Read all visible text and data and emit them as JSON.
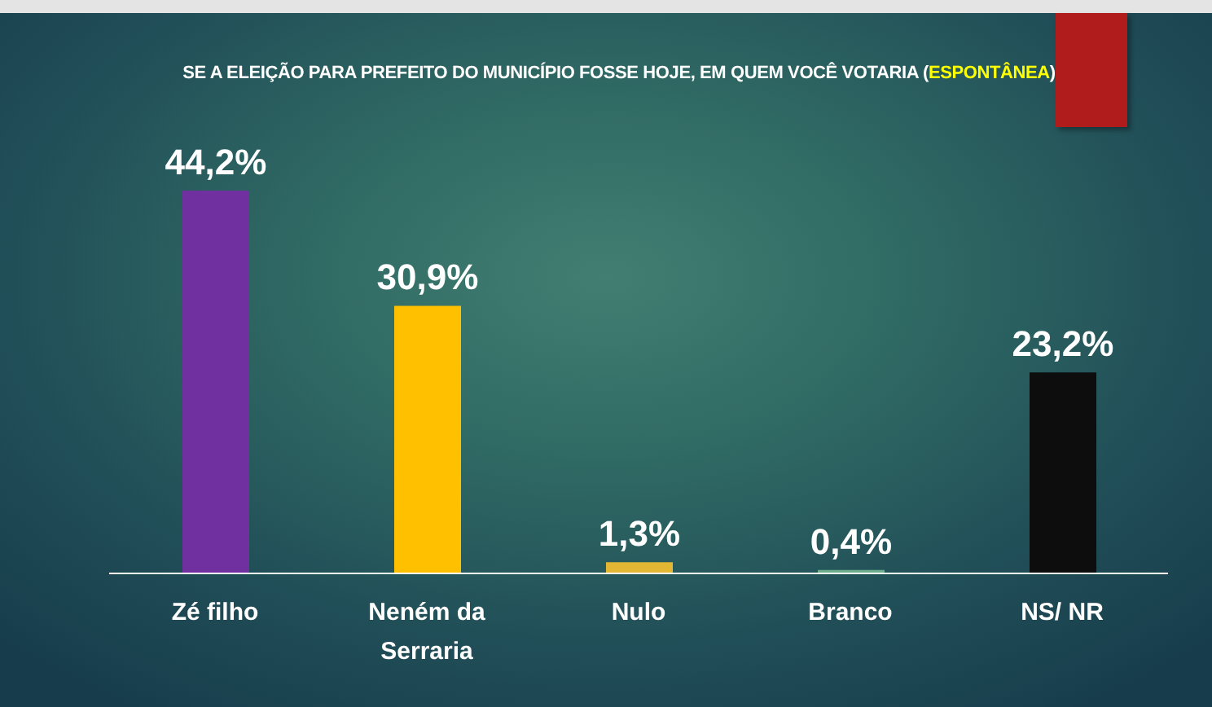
{
  "chart_data": {
    "type": "bar",
    "title": "SE A ELEIÇÃO PARA PREFEITO DO MUNICÍPIO FOSSE HOJE, EM QUEM VOCÊ VOTARIA (ESPONTÂNEA)",
    "categories": [
      "Zé filho",
      "Neném da Serraria",
      "Nulo",
      "Branco",
      "NS/ NR"
    ],
    "values": [
      44.2,
      30.9,
      1.3,
      0.4,
      23.2
    ],
    "colors": [
      "#7030a0",
      "#ffc000",
      "#e3b633",
      "#6fae8c",
      "#0d0d0d"
    ],
    "value_labels": [
      "44,2%",
      "30,9%",
      "1,3%",
      "0,4%",
      "23,2%"
    ]
  }
}
